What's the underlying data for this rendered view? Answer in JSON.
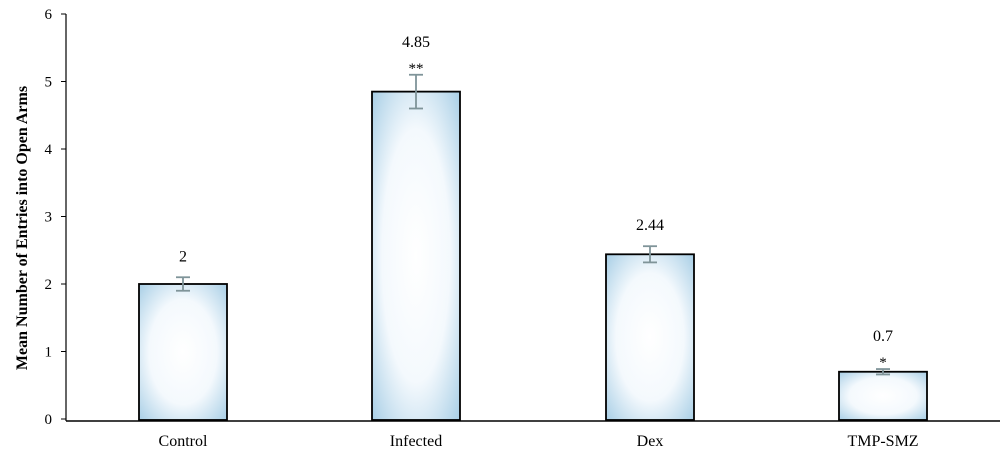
{
  "chart_data": {
    "type": "bar",
    "title": "",
    "xlabel": "",
    "ylabel": "Mean Number of Entries into Open Arms",
    "ylim": [
      0,
      6
    ],
    "yticks": [
      "0",
      "1",
      "2",
      "3",
      "4",
      "5",
      "6"
    ],
    "categories": [
      "Control",
      "Infected",
      "Dex",
      "TMP-SMZ"
    ],
    "values": [
      2,
      4.85,
      2.44,
      0.7
    ],
    "value_labels": [
      "2",
      "4.85",
      "2.44",
      "0.7"
    ],
    "error": [
      0.1,
      0.25,
      0.12,
      0.04
    ],
    "significance": [
      "",
      "**",
      "",
      "*"
    ],
    "grid": false,
    "legend": "none",
    "colors": {
      "bar_fill_center": "#ffffff",
      "bar_fill_edge": "#a9cfe6",
      "bar_stroke": "#000000",
      "error_bar": "#7f9499",
      "axis": "#000000"
    }
  }
}
